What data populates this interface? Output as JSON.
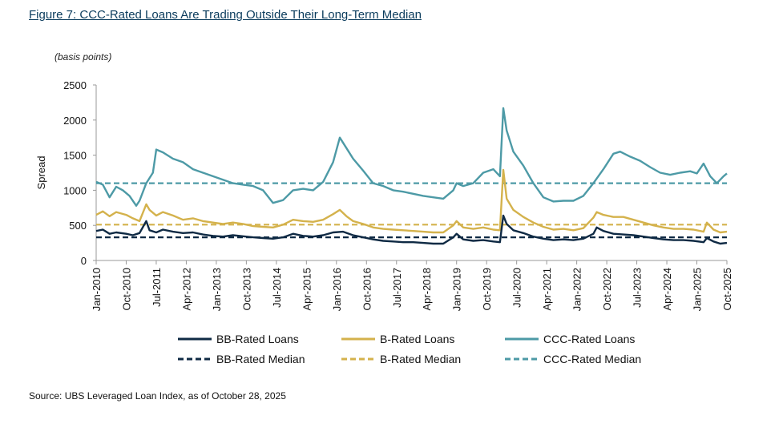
{
  "figure": {
    "title": "Figure 7: CCC-Rated Loans Are Trading Outside Their Long-Term Median",
    "unit_label": "(basis points)",
    "source": "Source: UBS Leveraged Loan Index, as of October 28, 2025"
  },
  "chart_data": {
    "type": "line",
    "ylabel": "Spread",
    "ylim": [
      0,
      2500
    ],
    "yticks": [
      0,
      500,
      1000,
      1500,
      2000,
      2500
    ],
    "xlim": [
      "2010-01",
      "2025-10"
    ],
    "xticks": [
      "Jan-2010",
      "Oct-2010",
      "Jul-2011",
      "Apr-2012",
      "Jan-2013",
      "Oct-2013",
      "Jul-2014",
      "Apr-2015",
      "Jan-2016",
      "Oct-2016",
      "Jul-2017",
      "Apr-2018",
      "Jan-2019",
      "Oct-2019",
      "Jul-2020",
      "Apr-2021",
      "Jan-2022",
      "Oct-2022",
      "Jul-2023",
      "Apr-2024",
      "Jan-2025",
      "Oct-2025"
    ],
    "grid": false,
    "legend_position": "bottom",
    "series": [
      {
        "name": "BB-Rated Loans",
        "color": "#0f2a44",
        "style": "solid",
        "points": [
          [
            "2010-01",
            420
          ],
          [
            "2010-03",
            440
          ],
          [
            "2010-05",
            380
          ],
          [
            "2010-07",
            400
          ],
          [
            "2010-10",
            380
          ],
          [
            "2010-12",
            360
          ],
          [
            "2011-02",
            390
          ],
          [
            "2011-04",
            560
          ],
          [
            "2011-05",
            430
          ],
          [
            "2011-07",
            400
          ],
          [
            "2011-09",
            440
          ],
          [
            "2011-12",
            410
          ],
          [
            "2012-03",
            390
          ],
          [
            "2012-06",
            400
          ],
          [
            "2012-09",
            370
          ],
          [
            "2012-12",
            350
          ],
          [
            "2013-03",
            340
          ],
          [
            "2013-06",
            360
          ],
          [
            "2013-09",
            345
          ],
          [
            "2013-12",
            330
          ],
          [
            "2014-03",
            320
          ],
          [
            "2014-06",
            310
          ],
          [
            "2014-09",
            330
          ],
          [
            "2014-12",
            380
          ],
          [
            "2015-03",
            350
          ],
          [
            "2015-06",
            340
          ],
          [
            "2015-09",
            360
          ],
          [
            "2015-12",
            400
          ],
          [
            "2016-03",
            410
          ],
          [
            "2016-06",
            360
          ],
          [
            "2016-09",
            330
          ],
          [
            "2016-12",
            300
          ],
          [
            "2017-03",
            280
          ],
          [
            "2017-06",
            270
          ],
          [
            "2017-09",
            260
          ],
          [
            "2017-12",
            260
          ],
          [
            "2018-03",
            250
          ],
          [
            "2018-06",
            240
          ],
          [
            "2018-09",
            240
          ],
          [
            "2018-12",
            330
          ],
          [
            "2019-01",
            380
          ],
          [
            "2019-03",
            300
          ],
          [
            "2019-06",
            280
          ],
          [
            "2019-09",
            290
          ],
          [
            "2019-12",
            270
          ],
          [
            "2020-02",
            260
          ],
          [
            "2020-03",
            640
          ],
          [
            "2020-04",
            520
          ],
          [
            "2020-06",
            430
          ],
          [
            "2020-09",
            390
          ],
          [
            "2020-12",
            340
          ],
          [
            "2021-03",
            310
          ],
          [
            "2021-06",
            290
          ],
          [
            "2021-09",
            300
          ],
          [
            "2021-12",
            290
          ],
          [
            "2022-03",
            310
          ],
          [
            "2022-06",
            380
          ],
          [
            "2022-07",
            470
          ],
          [
            "2022-09",
            420
          ],
          [
            "2022-12",
            380
          ],
          [
            "2023-03",
            370
          ],
          [
            "2023-06",
            360
          ],
          [
            "2023-09",
            340
          ],
          [
            "2023-12",
            320
          ],
          [
            "2024-03",
            300
          ],
          [
            "2024-06",
            290
          ],
          [
            "2024-09",
            290
          ],
          [
            "2024-12",
            280
          ],
          [
            "2025-03",
            260
          ],
          [
            "2025-04",
            320
          ],
          [
            "2025-06",
            270
          ],
          [
            "2025-08",
            240
          ],
          [
            "2025-10",
            250
          ]
        ]
      },
      {
        "name": "B-Rated Loans",
        "color": "#d4b24c",
        "style": "solid",
        "points": [
          [
            "2010-01",
            650
          ],
          [
            "2010-03",
            700
          ],
          [
            "2010-05",
            630
          ],
          [
            "2010-07",
            690
          ],
          [
            "2010-10",
            650
          ],
          [
            "2010-12",
            600
          ],
          [
            "2011-02",
            560
          ],
          [
            "2011-04",
            800
          ],
          [
            "2011-05",
            720
          ],
          [
            "2011-07",
            640
          ],
          [
            "2011-09",
            690
          ],
          [
            "2011-12",
            640
          ],
          [
            "2012-03",
            580
          ],
          [
            "2012-06",
            600
          ],
          [
            "2012-09",
            560
          ],
          [
            "2012-12",
            540
          ],
          [
            "2013-03",
            520
          ],
          [
            "2013-06",
            540
          ],
          [
            "2013-09",
            520
          ],
          [
            "2013-12",
            490
          ],
          [
            "2014-03",
            480
          ],
          [
            "2014-06",
            470
          ],
          [
            "2014-09",
            510
          ],
          [
            "2014-12",
            580
          ],
          [
            "2015-03",
            560
          ],
          [
            "2015-06",
            550
          ],
          [
            "2015-09",
            580
          ],
          [
            "2015-12",
            660
          ],
          [
            "2016-02",
            720
          ],
          [
            "2016-04",
            630
          ],
          [
            "2016-06",
            560
          ],
          [
            "2016-09",
            520
          ],
          [
            "2016-12",
            470
          ],
          [
            "2017-03",
            450
          ],
          [
            "2017-06",
            440
          ],
          [
            "2017-09",
            430
          ],
          [
            "2017-12",
            420
          ],
          [
            "2018-03",
            410
          ],
          [
            "2018-06",
            400
          ],
          [
            "2018-09",
            400
          ],
          [
            "2018-12",
            500
          ],
          [
            "2019-01",
            560
          ],
          [
            "2019-03",
            470
          ],
          [
            "2019-06",
            450
          ],
          [
            "2019-09",
            470
          ],
          [
            "2019-12",
            440
          ],
          [
            "2020-02",
            430
          ],
          [
            "2020-03",
            1290
          ],
          [
            "2020-04",
            880
          ],
          [
            "2020-06",
            720
          ],
          [
            "2020-09",
            620
          ],
          [
            "2020-12",
            540
          ],
          [
            "2021-03",
            480
          ],
          [
            "2021-06",
            440
          ],
          [
            "2021-09",
            450
          ],
          [
            "2021-12",
            430
          ],
          [
            "2022-03",
            460
          ],
          [
            "2022-06",
            610
          ],
          [
            "2022-07",
            690
          ],
          [
            "2022-09",
            650
          ],
          [
            "2022-12",
            620
          ],
          [
            "2023-03",
            620
          ],
          [
            "2023-06",
            580
          ],
          [
            "2023-09",
            540
          ],
          [
            "2023-12",
            500
          ],
          [
            "2024-03",
            470
          ],
          [
            "2024-06",
            450
          ],
          [
            "2024-09",
            450
          ],
          [
            "2024-12",
            440
          ],
          [
            "2025-03",
            410
          ],
          [
            "2025-04",
            540
          ],
          [
            "2025-06",
            440
          ],
          [
            "2025-08",
            400
          ],
          [
            "2025-10",
            410
          ]
        ]
      },
      {
        "name": "CCC-Rated Loans",
        "color": "#4d9aa6",
        "style": "solid",
        "points": [
          [
            "2010-01",
            1120
          ],
          [
            "2010-03",
            1080
          ],
          [
            "2010-05",
            900
          ],
          [
            "2010-07",
            1050
          ],
          [
            "2010-09",
            1000
          ],
          [
            "2010-11",
            920
          ],
          [
            "2011-01",
            780
          ],
          [
            "2011-02",
            850
          ],
          [
            "2011-04",
            1100
          ],
          [
            "2011-06",
            1250
          ],
          [
            "2011-07",
            1580
          ],
          [
            "2011-09",
            1540
          ],
          [
            "2011-12",
            1450
          ],
          [
            "2012-03",
            1400
          ],
          [
            "2012-06",
            1300
          ],
          [
            "2012-09",
            1250
          ],
          [
            "2012-12",
            1200
          ],
          [
            "2013-03",
            1150
          ],
          [
            "2013-06",
            1100
          ],
          [
            "2013-09",
            1080
          ],
          [
            "2013-12",
            1060
          ],
          [
            "2014-03",
            1000
          ],
          [
            "2014-06",
            820
          ],
          [
            "2014-09",
            860
          ],
          [
            "2014-12",
            1000
          ],
          [
            "2015-03",
            1020
          ],
          [
            "2015-06",
            1000
          ],
          [
            "2015-09",
            1120
          ],
          [
            "2015-12",
            1400
          ],
          [
            "2016-02",
            1750
          ],
          [
            "2016-04",
            1600
          ],
          [
            "2016-06",
            1450
          ],
          [
            "2016-09",
            1280
          ],
          [
            "2016-12",
            1100
          ],
          [
            "2017-03",
            1060
          ],
          [
            "2017-06",
            1000
          ],
          [
            "2017-09",
            980
          ],
          [
            "2017-12",
            950
          ],
          [
            "2018-03",
            920
          ],
          [
            "2018-06",
            900
          ],
          [
            "2018-09",
            880
          ],
          [
            "2018-12",
            1000
          ],
          [
            "2019-01",
            1100
          ],
          [
            "2019-03",
            1060
          ],
          [
            "2019-06",
            1100
          ],
          [
            "2019-09",
            1250
          ],
          [
            "2019-12",
            1300
          ],
          [
            "2020-02",
            1200
          ],
          [
            "2020-03",
            2170
          ],
          [
            "2020-04",
            1850
          ],
          [
            "2020-06",
            1550
          ],
          [
            "2020-09",
            1350
          ],
          [
            "2020-12",
            1100
          ],
          [
            "2021-03",
            900
          ],
          [
            "2021-06",
            840
          ],
          [
            "2021-09",
            850
          ],
          [
            "2021-12",
            850
          ],
          [
            "2022-03",
            920
          ],
          [
            "2022-06",
            1100
          ],
          [
            "2022-09",
            1300
          ],
          [
            "2022-12",
            1520
          ],
          [
            "2023-02",
            1550
          ],
          [
            "2023-05",
            1480
          ],
          [
            "2023-08",
            1420
          ],
          [
            "2023-11",
            1330
          ],
          [
            "2024-02",
            1250
          ],
          [
            "2024-05",
            1220
          ],
          [
            "2024-08",
            1250
          ],
          [
            "2024-11",
            1270
          ],
          [
            "2025-01",
            1240
          ],
          [
            "2025-03",
            1380
          ],
          [
            "2025-05",
            1200
          ],
          [
            "2025-07",
            1100
          ],
          [
            "2025-09",
            1200
          ],
          [
            "2025-10",
            1240
          ]
        ]
      },
      {
        "name": "BB-Rated Median",
        "color": "#0f2a44",
        "style": "dashed",
        "points": [
          [
            "2010-01",
            330
          ],
          [
            "2025-10",
            330
          ]
        ]
      },
      {
        "name": "B-Rated Median",
        "color": "#d4b24c",
        "style": "dashed",
        "points": [
          [
            "2010-01",
            510
          ],
          [
            "2025-10",
            510
          ]
        ]
      },
      {
        "name": "CCC-Rated Median",
        "color": "#4d9aa6",
        "style": "dashed",
        "points": [
          [
            "2010-01",
            1100
          ],
          [
            "2025-10",
            1100
          ]
        ]
      }
    ],
    "legend": {
      "rows": [
        [
          "BB-Rated Loans",
          "B-Rated Loans",
          "CCC-Rated Loans"
        ],
        [
          "BB-Rated Median",
          "B-Rated Median",
          "CCC-Rated Median"
        ]
      ]
    }
  }
}
